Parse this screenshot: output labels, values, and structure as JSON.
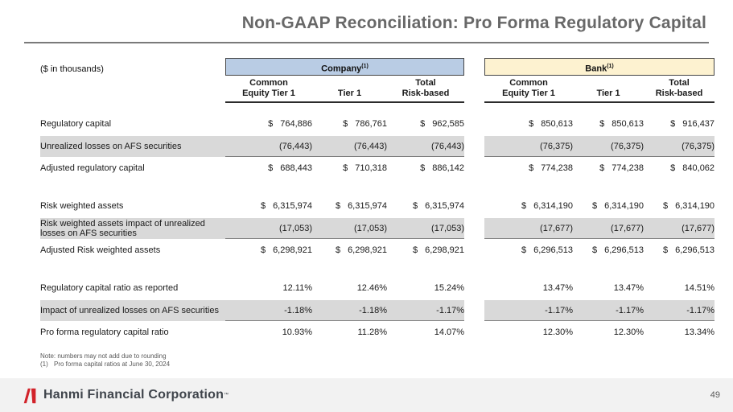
{
  "slide": {
    "title": "Non-GAAP Reconciliation: Pro Forma Regulatory Capital",
    "units_label": "($ in thousands)"
  },
  "table": {
    "company_header": {
      "label": "Company",
      "footnote": "(1)"
    },
    "bank_header": {
      "label": "Bank",
      "footnote": "(1)"
    },
    "columns": [
      {
        "line1": "Common",
        "line2": "Equity Tier 1"
      },
      {
        "line1": "",
        "line2": "Tier 1"
      },
      {
        "line1": "Total",
        "line2": "Risk-based"
      }
    ],
    "sections": [
      {
        "rows": [
          {
            "label": "Regulatory capital",
            "currency": "$",
            "company": [
              "764,886",
              "786,761",
              "962,585"
            ],
            "bank": [
              "850,613",
              "850,613",
              "916,437"
            ]
          },
          {
            "label": "Unrealized losses on AFS securities",
            "shaded": true,
            "company": [
              "(76,443)",
              "(76,443)",
              "(76,443)"
            ],
            "bank": [
              "(76,375)",
              "(76,375)",
              "(76,375)"
            ]
          },
          {
            "label": "Adjusted regulatory capital",
            "currency": "$",
            "company": [
              "688,443",
              "710,318",
              "886,142"
            ],
            "bank": [
              "774,238",
              "774,238",
              "840,062"
            ]
          }
        ]
      },
      {
        "rows": [
          {
            "label": "Risk weighted assets",
            "currency": "$",
            "company": [
              "6,315,974",
              "6,315,974",
              "6,315,974"
            ],
            "bank": [
              "6,314,190",
              "6,314,190",
              "6,314,190"
            ]
          },
          {
            "label": "Risk weighted assets impact of unrealized losses on AFS securities",
            "shaded": true,
            "company": [
              "(17,053)",
              "(17,053)",
              "(17,053)"
            ],
            "bank": [
              "(17,677)",
              "(17,677)",
              "(17,677)"
            ]
          },
          {
            "label": "Adjusted Risk weighted assets",
            "currency": "$",
            "company": [
              "6,298,921",
              "6,298,921",
              "6,298,921"
            ],
            "bank": [
              "6,296,513",
              "6,296,513",
              "6,296,513"
            ]
          }
        ]
      },
      {
        "rows": [
          {
            "label": "Regulatory capital ratio as reported",
            "company": [
              "12.11%",
              "12.46%",
              "15.24%"
            ],
            "bank": [
              "13.47%",
              "13.47%",
              "14.51%"
            ]
          },
          {
            "label": "Impact of unrealized losses on AFS securities",
            "shaded": true,
            "company": [
              "-1.18%",
              "-1.18%",
              "-1.17%"
            ],
            "bank": [
              "-1.17%",
              "-1.17%",
              "-1.17%"
            ]
          },
          {
            "label": "Pro forma regulatory capital ratio",
            "company": [
              "10.93%",
              "11.28%",
              "14.07%"
            ],
            "bank": [
              "12.30%",
              "12.30%",
              "13.34%"
            ]
          }
        ]
      }
    ]
  },
  "notes": {
    "note1": "Note: numbers may not add due to rounding",
    "note2_marker": "(1)",
    "note2_text": "Pro forma capital ratios at June 30, 2024"
  },
  "footer": {
    "company_name": "Hanmi Financial Corporation",
    "trademark": "™",
    "page_number": "49"
  },
  "colors": {
    "company_header_bg": "#b9cce4",
    "bank_header_bg": "#fdf2d0",
    "shaded_row_bg": "#d9d9d9",
    "footer_bg": "#f2f2f2",
    "logo_red": "#d2232a"
  }
}
